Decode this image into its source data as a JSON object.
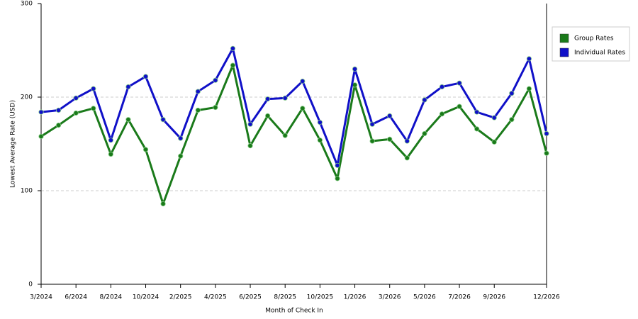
{
  "chart_data": {
    "type": "line",
    "x_label": "Month of Check In",
    "y_label": "Lowest Average Rate (USD)",
    "categories": [
      "3/2024",
      null,
      "6/2024",
      null,
      "8/2024",
      null,
      "10/2024",
      null,
      "2/2025",
      null,
      "4/2025",
      null,
      "6/2025",
      null,
      "8/2025",
      null,
      "10/2025",
      null,
      "1/2026",
      null,
      "3/2026",
      null,
      "5/2026",
      null,
      "7/2026",
      null,
      "9/2026",
      null,
      null,
      "12/2026"
    ],
    "series": [
      {
        "name": "Group Rates",
        "color": "#1a7a1a",
        "values": [
          158,
          170,
          183,
          188,
          139,
          176,
          144,
          86,
          137,
          186,
          189,
          234,
          148,
          180,
          159,
          188,
          154,
          113,
          213,
          153,
          155,
          135,
          161,
          182,
          190,
          166,
          152,
          176,
          209,
          140
        ]
      },
      {
        "name": "Individual Rates",
        "color": "#1010c8",
        "values": [
          184,
          186,
          199,
          209,
          154,
          211,
          222,
          176,
          156,
          206,
          218,
          252,
          171,
          198,
          199,
          217,
          173,
          127,
          230,
          171,
          180,
          153,
          197,
          211,
          215,
          184,
          178,
          204,
          241,
          161
        ]
      }
    ],
    "ylim": [
      0,
      300
    ],
    "yticks": [
      0,
      100,
      200,
      300
    ],
    "grid": true,
    "legend": "right"
  }
}
